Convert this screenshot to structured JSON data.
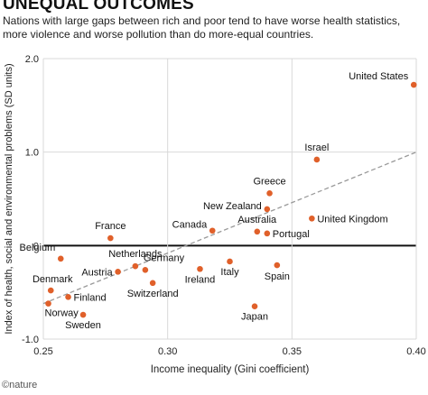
{
  "title": "UNEQUAL OUTCOMES",
  "subtitle": "Nations with large gaps between rich and poor tend to have worse health statistics, more violence and worse pollution than do more-equal countries.",
  "credit": "©nature",
  "colors": {
    "point": "#e0602a",
    "trend": "#9a9a9a",
    "grid": "#d9d9d9",
    "zero": "#111111"
  },
  "chart_data": {
    "type": "scatter",
    "xlabel": "Income inequality (Gini coefficient)",
    "ylabel": "Index of health, social and environmental problems (SD units)",
    "xlim": [
      0.25,
      0.4
    ],
    "ylim": [
      -1.0,
      2.0
    ],
    "xticks": [
      "0.25",
      "0.30",
      "0.35",
      "0.40"
    ],
    "yticks": [
      "-1.0",
      "0",
      "1.0",
      "2.0"
    ],
    "grid": true,
    "trendline": {
      "x": [
        0.25,
        0.4
      ],
      "y": [
        -0.62,
        1.0
      ]
    },
    "points": [
      {
        "label": "United States",
        "x": 0.399,
        "y": 1.72
      },
      {
        "label": "Israel",
        "x": 0.36,
        "y": 0.92
      },
      {
        "label": "Greece",
        "x": 0.341,
        "y": 0.56
      },
      {
        "label": "New Zealand",
        "x": 0.34,
        "y": 0.39
      },
      {
        "label": "United Kingdom",
        "x": 0.358,
        "y": 0.29
      },
      {
        "label": "Australia",
        "x": 0.336,
        "y": 0.15
      },
      {
        "label": "Portugal",
        "x": 0.34,
        "y": 0.13
      },
      {
        "label": "Canada",
        "x": 0.318,
        "y": 0.16
      },
      {
        "label": "France",
        "x": 0.277,
        "y": 0.08
      },
      {
        "label": "Belgium",
        "x": 0.257,
        "y": -0.14
      },
      {
        "label": "Netherlands",
        "x": 0.287,
        "y": -0.22
      },
      {
        "label": "Germany",
        "x": 0.291,
        "y": -0.26
      },
      {
        "label": "Austria",
        "x": 0.28,
        "y": -0.28
      },
      {
        "label": "Italy",
        "x": 0.325,
        "y": -0.17
      },
      {
        "label": "Ireland",
        "x": 0.313,
        "y": -0.25
      },
      {
        "label": "Switzerland",
        "x": 0.294,
        "y": -0.4
      },
      {
        "label": "Spain",
        "x": 0.344,
        "y": -0.21
      },
      {
        "label": "Denmark",
        "x": 0.253,
        "y": -0.48
      },
      {
        "label": "Finland",
        "x": 0.26,
        "y": -0.55
      },
      {
        "label": "Norway",
        "x": 0.252,
        "y": -0.62
      },
      {
        "label": "Sweden",
        "x": 0.266,
        "y": -0.74
      },
      {
        "label": "Japan",
        "x": 0.335,
        "y": -0.65
      }
    ]
  }
}
